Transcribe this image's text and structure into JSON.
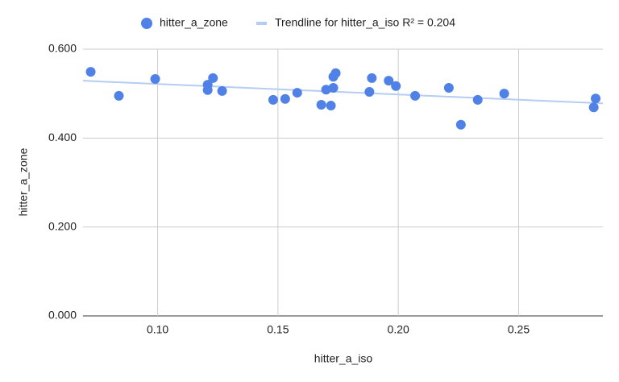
{
  "chart_data": {
    "type": "scatter",
    "x_label": "hitter_a_iso",
    "y_label": "hitter_a_zone",
    "series": [
      {
        "name": "hitter_a_zone",
        "color": "#4f81e6",
        "x": [
          0.0722,
          0.0839,
          0.099,
          0.1208,
          0.1208,
          0.123,
          0.1268,
          0.148,
          0.153,
          0.158,
          0.168,
          0.17,
          0.172,
          0.173,
          0.173,
          0.174,
          0.188,
          0.189,
          0.196,
          0.199,
          0.207,
          0.221,
          0.226,
          0.233,
          0.244,
          0.2812,
          0.282
        ],
        "values": [
          0.549,
          0.495,
          0.533,
          0.52,
          0.508,
          0.535,
          0.506,
          0.486,
          0.488,
          0.502,
          0.475,
          0.509,
          0.473,
          0.513,
          0.538,
          0.546,
          0.504,
          0.535,
          0.529,
          0.517,
          0.495,
          0.513,
          0.43,
          0.486,
          0.5,
          0.469,
          0.489
        ]
      }
    ],
    "trendline": {
      "name": "Trendline for hitter_a_iso R² = 0.204",
      "color": "#b4cdf2",
      "x": [
        0.069,
        0.285
      ],
      "values": [
        0.529,
        0.478
      ]
    },
    "xlim": [
      0.069,
      0.285
    ],
    "xticks": [
      {
        "value": 0.1,
        "label": "0.10"
      },
      {
        "value": 0.15,
        "label": "0.15"
      },
      {
        "value": 0.2,
        "label": "0.20"
      },
      {
        "value": 0.25,
        "label": "0.25"
      }
    ],
    "ylim": [
      0,
      0.6
    ],
    "yticks": [
      {
        "value": 0,
        "label": "0.000"
      },
      {
        "value": 0.2,
        "label": "0.200"
      },
      {
        "value": 0.4,
        "label": "0.400"
      },
      {
        "value": 0.6,
        "label": "0.600"
      }
    ],
    "grid": true,
    "legend": "top"
  }
}
